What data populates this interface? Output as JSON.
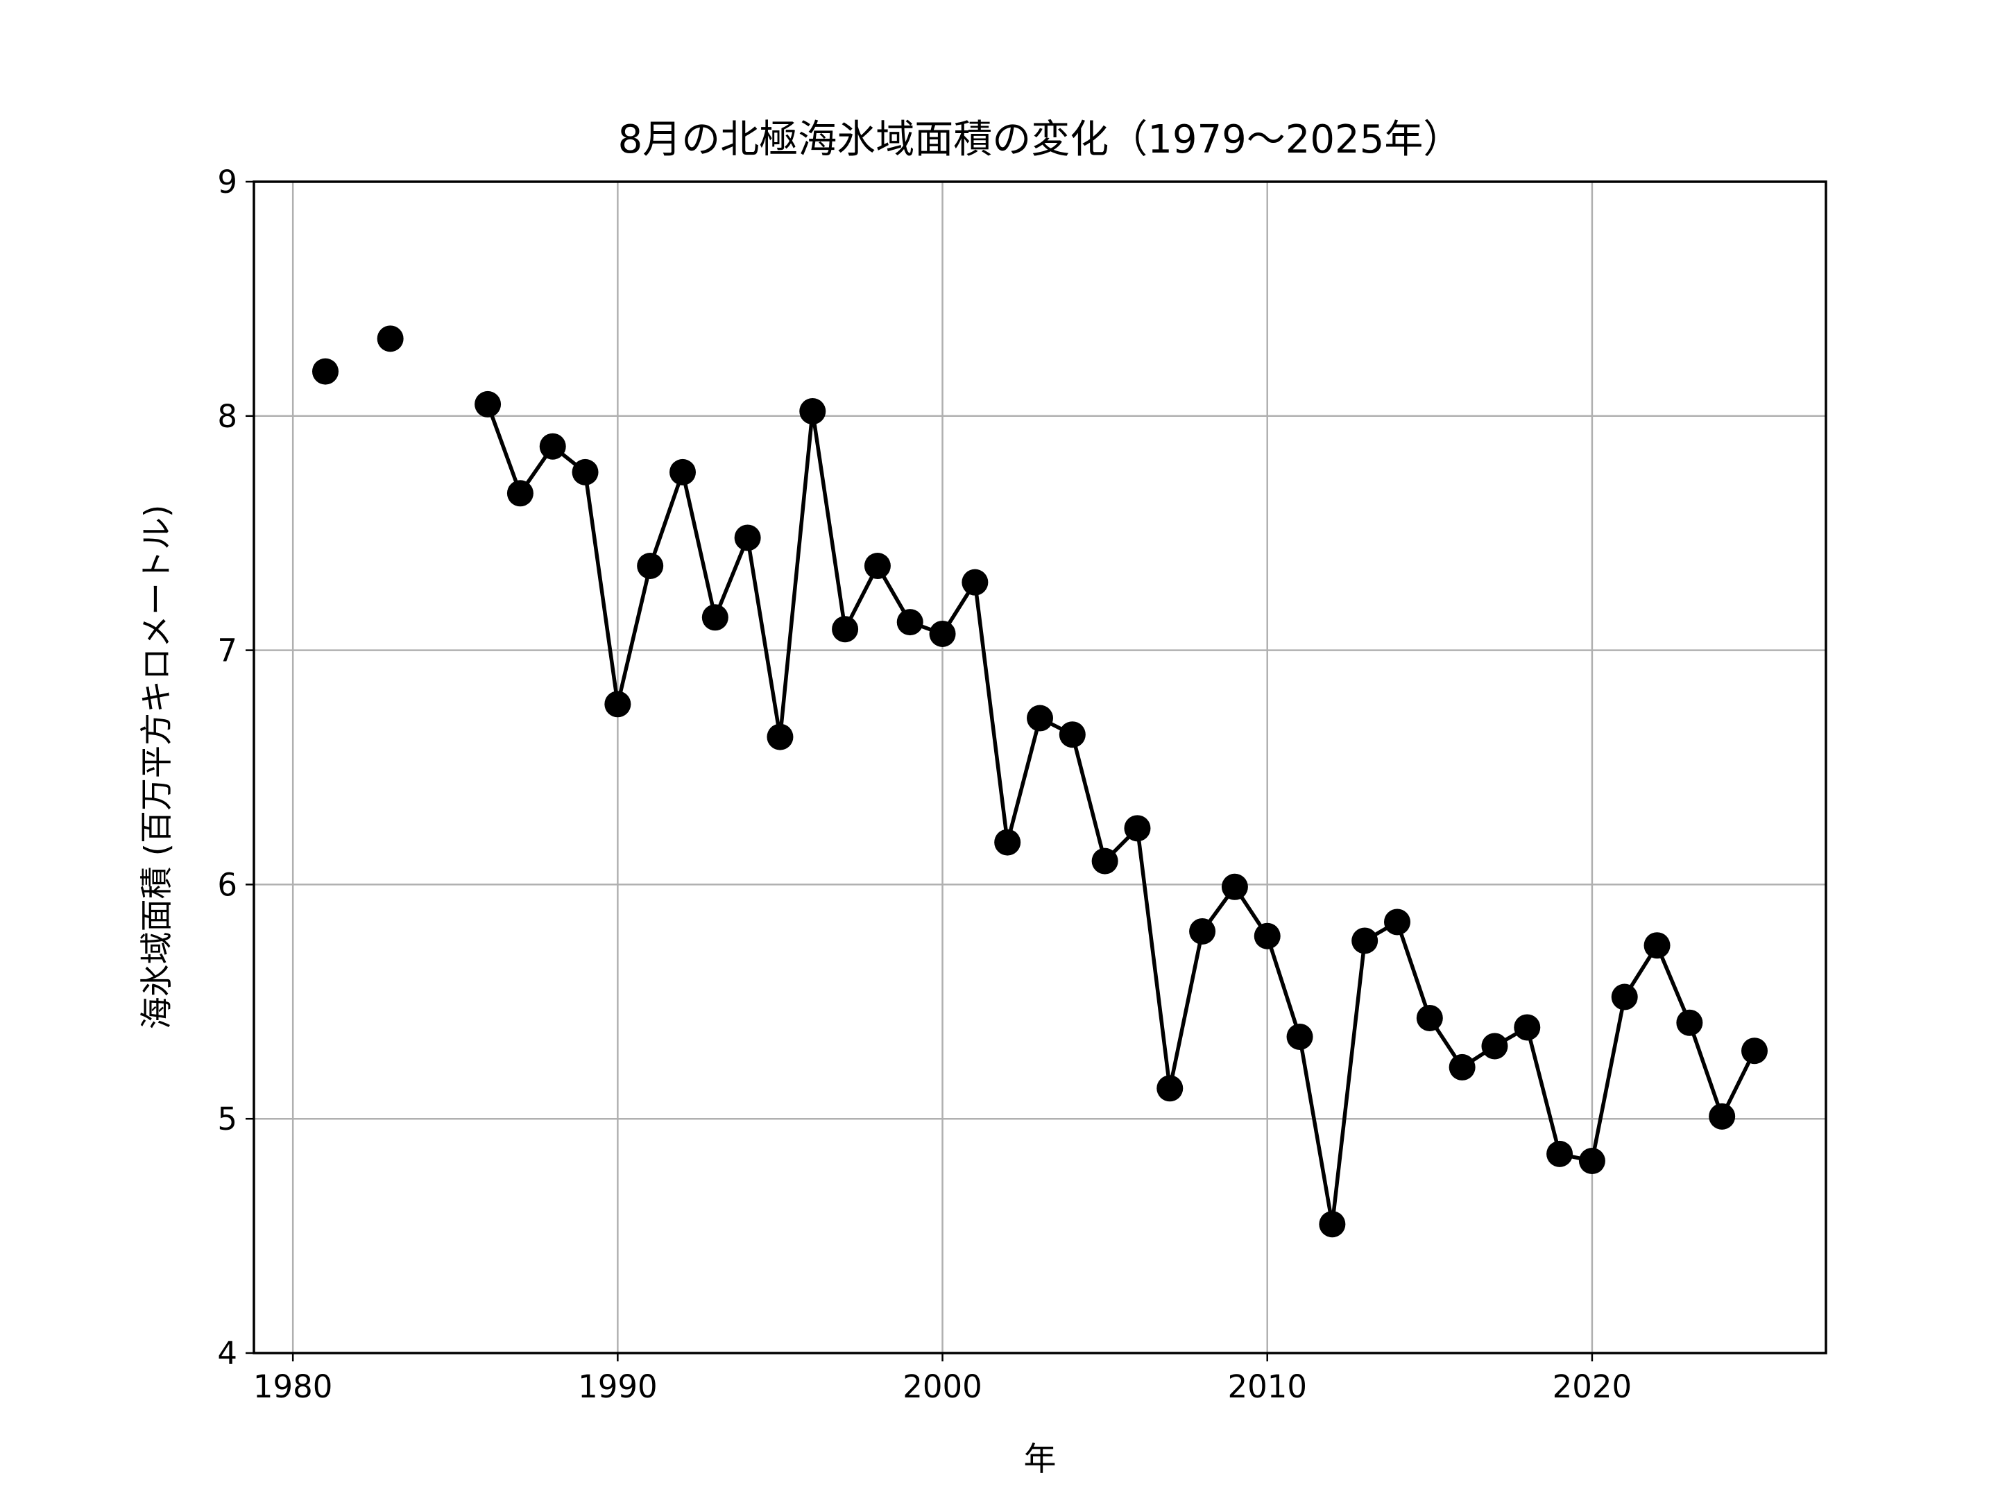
{
  "chart_data": {
    "type": "line",
    "title": "8月の北極海氷域面積の変化（1979～2025年）",
    "xlabel": "年",
    "ylabel": "海氷域面積 (百万平方キロメートル)",
    "xlim": [
      1978.8,
      2027.2
    ],
    "ylim": [
      4,
      9
    ],
    "xticks": [
      1980,
      1990,
      2000,
      2010,
      2020
    ],
    "yticks": [
      4,
      5,
      6,
      7,
      8,
      9
    ],
    "grid": true,
    "line_color": "#000000",
    "marker": "circle",
    "x": [
      1981,
      1983,
      1986,
      1987,
      1988,
      1989,
      1990,
      1991,
      1992,
      1993,
      1994,
      1995,
      1996,
      1997,
      1998,
      1999,
      2000,
      2001,
      2002,
      2003,
      2004,
      2005,
      2006,
      2007,
      2008,
      2009,
      2010,
      2011,
      2012,
      2013,
      2014,
      2015,
      2016,
      2017,
      2018,
      2019,
      2020,
      2021,
      2022,
      2023,
      2024,
      2025
    ],
    "y": [
      8.19,
      8.33,
      8.05,
      7.67,
      7.87,
      7.76,
      6.77,
      7.36,
      7.76,
      7.14,
      7.48,
      6.63,
      8.02,
      7.09,
      7.36,
      7.12,
      7.07,
      7.29,
      6.18,
      6.71,
      6.64,
      6.1,
      6.24,
      5.13,
      5.8,
      5.99,
      5.78,
      5.35,
      4.55,
      5.76,
      5.84,
      5.43,
      5.22,
      5.31,
      5.39,
      4.85,
      4.82,
      5.52,
      5.74,
      5.41,
      5.01,
      5.29
    ],
    "line_segments": [
      [
        1986,
        2025
      ]
    ]
  }
}
